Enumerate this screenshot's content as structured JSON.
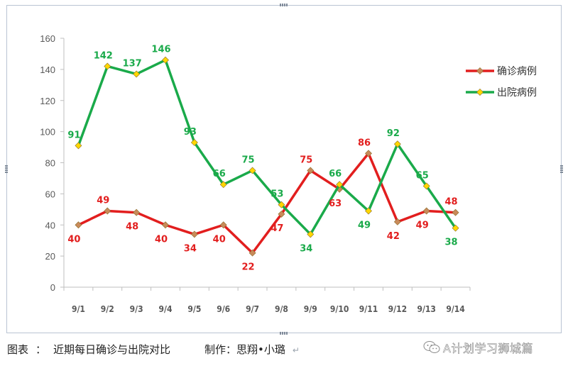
{
  "chart_data": {
    "type": "line",
    "categories": [
      "9/1",
      "9/2",
      "9/3",
      "9/4",
      "9/5",
      "9/6",
      "9/7",
      "9/8",
      "9/9",
      "9/10",
      "9/11",
      "9/12",
      "9/13",
      "9/14"
    ],
    "ylim": [
      0,
      160
    ],
    "yticks": [
      0,
      20,
      40,
      60,
      80,
      100,
      120,
      140,
      160
    ],
    "grid": false,
    "legend_position": "right",
    "series": [
      {
        "name": "确诊病例",
        "color": "#e21e1e",
        "marker_color": "#c98a5a",
        "values": [
          40,
          49,
          48,
          40,
          34,
          40,
          22,
          47,
          75,
          63,
          86,
          42,
          49,
          48
        ]
      },
      {
        "name": "出院病例",
        "color": "#1aaa4a",
        "marker_color": "#ffd700",
        "values": [
          91,
          142,
          137,
          146,
          93,
          66,
          75,
          53,
          34,
          66,
          49,
          92,
          65,
          38
        ]
      }
    ]
  },
  "caption": {
    "label": "图表",
    "separator": "：",
    "title": "近期每日确诊与出院对比",
    "credit": "制作：思翔•小璐",
    "return_mark": "↵"
  },
  "watermark": {
    "text": "A计划学习狮城篇",
    "icon": "wechat-icon"
  }
}
